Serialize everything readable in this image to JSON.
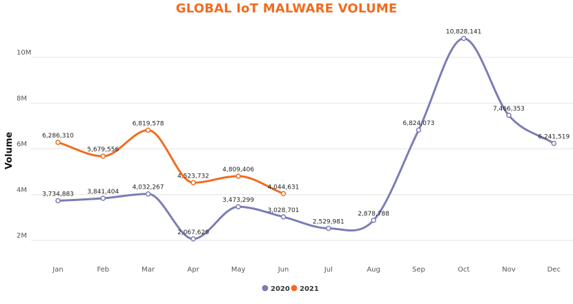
{
  "chart_data": {
    "type": "line",
    "title": "GLOBAL IoT MALWARE VOLUME",
    "xlabel": "",
    "ylabel": "Volume",
    "categories": [
      "Jan",
      "Feb",
      "Mar",
      "Apr",
      "May",
      "Jun",
      "Jul",
      "Aug",
      "Sep",
      "Oct",
      "Nov",
      "Dec"
    ],
    "y_ticks": [
      {
        "value": 2000000,
        "label": "2M"
      },
      {
        "value": 4000000,
        "label": "4M"
      },
      {
        "value": 6000000,
        "label": "6M"
      },
      {
        "value": 8000000,
        "label": "8M"
      },
      {
        "value": 10000000,
        "label": "10M"
      }
    ],
    "ylim": [
      1000000,
      11000000
    ],
    "grid": true,
    "legend_position": "bottom-center",
    "series": [
      {
        "name": "2020",
        "color": "#7b7cb5",
        "values": [
          3734883,
          3841404,
          4032267,
          2067629,
          3473299,
          3028701,
          2529981,
          2878788,
          6824073,
          10828141,
          7466353,
          6241519
        ],
        "labels": [
          "3,734,883",
          "3,841,404",
          "4,032,267",
          "2,067,629",
          "3,473,299",
          "3,028,701",
          "2,529,981",
          "2,878,788",
          "6,824,073",
          "10,828,141",
          "7,466,353",
          "6,241,519"
        ]
      },
      {
        "name": "2021",
        "color": "#f26b1d",
        "values": [
          6286310,
          5679556,
          6819578,
          4523732,
          4809406,
          4044631,
          null,
          null,
          null,
          null,
          null,
          null
        ],
        "labels": [
          "6,286,310",
          "5,679,556",
          "6,819,578",
          "4,523,732",
          "4,809,406",
          "4,044,631",
          null,
          null,
          null,
          null,
          null,
          null
        ]
      }
    ]
  }
}
